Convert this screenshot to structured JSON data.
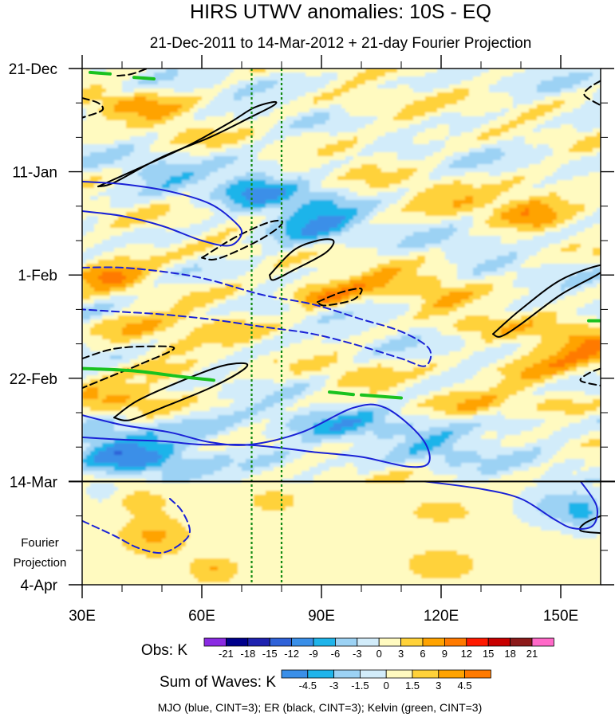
{
  "chart_data": {
    "type": "heatmap",
    "title": "HIRS UTWV anomalies: 10S - EQ",
    "subtitle": "21-Dec-2011 to 14-Mar-2012 + 21-day Fourier Projection",
    "x_ticks": [
      {
        "value": 30,
        "label": "30E"
      },
      {
        "value": 60,
        "label": "60E"
      },
      {
        "value": 90,
        "label": "90E"
      },
      {
        "value": 120,
        "label": "120E"
      },
      {
        "value": 150,
        "label": "150E"
      }
    ],
    "xlim": [
      30,
      160
    ],
    "y_ticks": [
      {
        "value": 0,
        "label": "21-Dec"
      },
      {
        "value": 21,
        "label": "11-Jan"
      },
      {
        "value": 42,
        "label": "1-Feb"
      },
      {
        "value": 63,
        "label": "22-Feb"
      },
      {
        "value": 84,
        "label": "14-Mar"
      },
      {
        "value": 105,
        "label": "4-Apr"
      }
    ],
    "ylim": [
      0,
      105
    ],
    "projection_line_day": 84,
    "projection_label": [
      "Fourier",
      "Projection"
    ],
    "reference_lines_lon": [
      72.5,
      80
    ],
    "obs_legend": {
      "label": "Obs: K",
      "levels": [
        "-21",
        "-18",
        "-15",
        "-12",
        "-9",
        "-6",
        "-3",
        "0",
        "3",
        "6",
        "9",
        "12",
        "15",
        "18",
        "21"
      ],
      "colors": [
        "#8a2be2",
        "#00008b",
        "#1e22b0",
        "#2f62d8",
        "#3a8fe8",
        "#1fb4ea",
        "#9cd2f4",
        "#d2ecfa",
        "#fffac0",
        "#ffd23a",
        "#ffa300",
        "#ff7a00",
        "#ff1a00",
        "#c80000",
        "#8c1a1a",
        "#ff69c8"
      ]
    },
    "waves_legend": {
      "label": "Sum of Waves: K",
      "levels": [
        "-4.5",
        "-3",
        "-1.5",
        "0",
        "1.5",
        "3",
        "4.5"
      ],
      "colors": [
        "#3a8fe8",
        "#1fb4ea",
        "#9cd2f4",
        "#d2ecfa",
        "#fffac0",
        "#ffd23a",
        "#ffa300",
        "#ff7a00"
      ]
    },
    "footnote": "MJO (blue, CINT=3); ER (black, CINT=3); Kelvin (green, CINT=3)",
    "colors": {
      "mjo": "#1a22d6",
      "er": "#000000",
      "kelvin": "#19c21f",
      "ref_line": "#118a11"
    },
    "contours": [
      {
        "wave": "er",
        "dashed": false,
        "points": [
          [
            34,
            24
          ],
          [
            45,
            20
          ],
          [
            57,
            15.5
          ],
          [
            67,
            11
          ],
          [
            73,
            8
          ],
          [
            78,
            6.8
          ],
          [
            78,
            7.5
          ],
          [
            72,
            10
          ],
          [
            62,
            14
          ],
          [
            50,
            18
          ],
          [
            38,
            23.2
          ],
          [
            34,
            24
          ]
        ]
      },
      {
        "wave": "er",
        "dashed": true,
        "points": [
          [
            46,
            0.1
          ],
          [
            42,
            1.2
          ],
          [
            38,
            1.5
          ]
        ]
      },
      {
        "wave": "er",
        "dashed": true,
        "points": [
          [
            30,
            6
          ],
          [
            34,
            7
          ],
          [
            35,
            8.5
          ],
          [
            30,
            10
          ]
        ]
      },
      {
        "wave": "er",
        "dashed": true,
        "points": [
          [
            160,
            2.5
          ],
          [
            157,
            4
          ],
          [
            156,
            5.5
          ],
          [
            160,
            7.5
          ]
        ]
      },
      {
        "wave": "er",
        "dashed": true,
        "points": [
          [
            60,
            38.5
          ],
          [
            68,
            34.5
          ],
          [
            76,
            31.5
          ],
          [
            80,
            31
          ],
          [
            79,
            32.5
          ],
          [
            73,
            35.5
          ],
          [
            64,
            38.7
          ],
          [
            60,
            38.5
          ]
        ]
      },
      {
        "wave": "er",
        "dashed": false,
        "points": [
          [
            77,
            42
          ],
          [
            83,
            37
          ],
          [
            89,
            35
          ],
          [
            93,
            35
          ],
          [
            91,
            37.5
          ],
          [
            83,
            41
          ],
          [
            78,
            43
          ],
          [
            77,
            42
          ]
        ]
      },
      {
        "wave": "er",
        "dashed": true,
        "points": [
          [
            89,
            47.5
          ],
          [
            95,
            45.5
          ],
          [
            100,
            44.8
          ],
          [
            98,
            47
          ],
          [
            91,
            48.2
          ],
          [
            89,
            47.5
          ]
        ]
      },
      {
        "wave": "er",
        "dashed": false,
        "points": [
          [
            133,
            54
          ],
          [
            140,
            49
          ],
          [
            150,
            43
          ],
          [
            160,
            40
          ],
          [
            160,
            41.5
          ],
          [
            150,
            46
          ],
          [
            140,
            52
          ],
          [
            135,
            54.5
          ],
          [
            133,
            54
          ]
        ]
      },
      {
        "wave": "er",
        "dashed": true,
        "points": [
          [
            30,
            59
          ],
          [
            38,
            57
          ],
          [
            48,
            56.5
          ],
          [
            53,
            57
          ],
          [
            45,
            60
          ],
          [
            36,
            63
          ],
          [
            30,
            65
          ]
        ]
      },
      {
        "wave": "er",
        "dashed": false,
        "points": [
          [
            38,
            71
          ],
          [
            44,
            67.5
          ],
          [
            55,
            63.5
          ],
          [
            65,
            60.5
          ],
          [
            71,
            60
          ],
          [
            70,
            61.5
          ],
          [
            62,
            65
          ],
          [
            50,
            69
          ],
          [
            42,
            71.5
          ],
          [
            38,
            71
          ]
        ]
      },
      {
        "wave": "er",
        "dashed": true,
        "points": [
          [
            160,
            61
          ],
          [
            157,
            62
          ],
          [
            155,
            63.5
          ],
          [
            160,
            64.5
          ]
        ]
      },
      {
        "wave": "er",
        "dashed": false,
        "points": [
          [
            160,
            91
          ],
          [
            156,
            92.5
          ],
          [
            155,
            94
          ],
          [
            160,
            94.5
          ]
        ]
      },
      {
        "wave": "mjo",
        "dashed": false,
        "points": [
          [
            30,
            23
          ],
          [
            40,
            23.5
          ],
          [
            52,
            25
          ],
          [
            62,
            27.5
          ],
          [
            68,
            31
          ],
          [
            70,
            33.5
          ],
          [
            67,
            36
          ],
          [
            60,
            35
          ],
          [
            50,
            32
          ],
          [
            40,
            30
          ],
          [
            30,
            29
          ]
        ]
      },
      {
        "wave": "mjo",
        "dashed": true,
        "points": [
          [
            30,
            40.5
          ],
          [
            40,
            40.5
          ],
          [
            52,
            41.5
          ],
          [
            62,
            43
          ],
          [
            75,
            46
          ],
          [
            88,
            48
          ],
          [
            100,
            51
          ],
          [
            110,
            53.5
          ],
          [
            117,
            57
          ],
          [
            116,
            60.5
          ],
          [
            110,
            59
          ],
          [
            100,
            56.5
          ],
          [
            88,
            54
          ],
          [
            75,
            52.5
          ],
          [
            62,
            51
          ],
          [
            50,
            50
          ],
          [
            40,
            49.5
          ],
          [
            30,
            49
          ]
        ]
      },
      {
        "wave": "mjo",
        "dashed": false,
        "points": [
          [
            30,
            70.5
          ],
          [
            40,
            72.5
          ],
          [
            52,
            74
          ],
          [
            62,
            76
          ],
          [
            72,
            76.5
          ],
          [
            85,
            74
          ],
          [
            98,
            69
          ],
          [
            106,
            69
          ],
          [
            115,
            75
          ],
          [
            117,
            80
          ],
          [
            112,
            81
          ],
          [
            100,
            79
          ],
          [
            88,
            78
          ],
          [
            78,
            77
          ],
          [
            70,
            76.5
          ],
          [
            60,
            76.5
          ],
          [
            50,
            75.8
          ],
          [
            40,
            75.5
          ],
          [
            30,
            75
          ]
        ]
      },
      {
        "wave": "mjo",
        "dashed": true,
        "points": [
          [
            30,
            92
          ],
          [
            38,
            95
          ],
          [
            44,
            97.5
          ],
          [
            50,
            98.5
          ],
          [
            55,
            96.5
          ],
          [
            57,
            94
          ],
          [
            55,
            90
          ],
          [
            52,
            87.5
          ]
        ]
      },
      {
        "wave": "mjo",
        "dashed": false,
        "points": [
          [
            116,
            84
          ],
          [
            130,
            85.5
          ],
          [
            140,
            87.5
          ],
          [
            148,
            91.5
          ],
          [
            153,
            93.5
          ],
          [
            158,
            93
          ],
          [
            159,
            89
          ],
          [
            155,
            84
          ]
        ]
      },
      {
        "wave": "kelvin",
        "dashed": false,
        "points": [
          [
            32,
            0.8
          ],
          [
            37,
            1.1
          ]
        ]
      },
      {
        "wave": "kelvin",
        "dashed": false,
        "points": [
          [
            43,
            1.8
          ],
          [
            48,
            2.1
          ]
        ]
      },
      {
        "wave": "kelvin",
        "dashed": false,
        "points": [
          [
            30,
            61
          ],
          [
            43,
            61.5
          ],
          [
            55,
            62.7
          ],
          [
            63,
            63.4
          ]
        ]
      },
      {
        "wave": "kelvin",
        "dashed": false,
        "points": [
          [
            92,
            65.8
          ],
          [
            98,
            66.3
          ]
        ]
      },
      {
        "wave": "kelvin",
        "dashed": false,
        "points": [
          [
            100,
            66.4
          ],
          [
            110,
            67
          ]
        ]
      },
      {
        "wave": "kelvin",
        "dashed": false,
        "points": [
          [
            157,
            51.3
          ],
          [
            160,
            51.3
          ]
        ]
      }
    ]
  }
}
